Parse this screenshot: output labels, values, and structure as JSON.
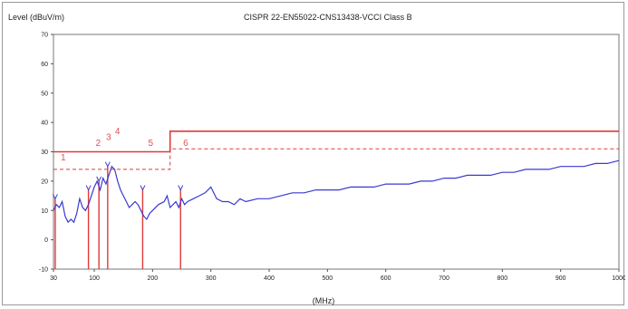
{
  "chart_data": {
    "type": "line",
    "title": "CISPR 22-EN55022-CNS13438-VCCI   Class B",
    "ylabel": "Level (dBuV/m)",
    "xlabel": "(MHz)",
    "xlim": [
      30,
      1000
    ],
    "ylim": [
      -10,
      70
    ],
    "x_ticks": [
      30,
      100,
      200,
      300,
      400,
      500,
      600,
      700,
      800,
      900,
      1000
    ],
    "y_ticks": [
      -10,
      0,
      10,
      20,
      30,
      40,
      50,
      60,
      70
    ],
    "grid": false,
    "limit_lines": [
      {
        "kind": "solid",
        "points": [
          [
            30,
            30
          ],
          [
            230,
            30
          ],
          [
            230,
            37
          ],
          [
            1000,
            37
          ]
        ]
      },
      {
        "kind": "dashed",
        "points": [
          [
            30,
            24
          ],
          [
            230,
            24
          ],
          [
            230,
            31
          ],
          [
            1000,
            31
          ]
        ]
      }
    ],
    "series": [
      {
        "x": [
          30,
          35,
          40,
          45,
          50,
          55,
          60,
          65,
          70,
          75,
          80,
          85,
          90,
          95,
          100,
          105,
          110,
          115,
          120,
          125,
          130,
          135,
          140,
          145,
          150,
          155,
          160,
          165,
          170,
          175,
          180,
          185,
          190,
          195,
          200,
          210,
          220,
          225,
          230,
          235,
          240,
          245,
          250,
          255,
          260,
          270,
          280,
          290,
          300,
          310,
          320,
          330,
          340,
          350,
          360,
          380,
          400,
          420,
          440,
          460,
          480,
          500,
          520,
          540,
          560,
          580,
          600,
          620,
          640,
          660,
          680,
          700,
          720,
          740,
          760,
          780,
          800,
          820,
          840,
          860,
          880,
          900,
          920,
          940,
          960,
          980,
          1000
        ],
        "y": [
          10,
          12,
          11,
          13,
          8,
          6,
          7,
          6,
          9,
          14,
          11,
          10,
          12,
          15,
          18,
          20,
          17,
          21,
          19,
          22,
          25,
          24,
          20,
          17,
          15,
          13,
          11,
          12,
          13,
          12,
          10,
          8,
          7,
          9,
          10,
          12,
          13,
          15,
          11,
          12,
          13,
          11,
          14,
          12,
          13,
          14,
          15,
          16,
          18,
          14,
          13,
          13,
          12,
          14,
          13,
          14,
          14,
          15,
          16,
          16,
          17,
          17,
          17,
          18,
          18,
          18,
          19,
          19,
          19,
          20,
          20,
          21,
          21,
          22,
          22,
          22,
          23,
          23,
          24,
          24,
          24,
          25,
          25,
          25,
          26,
          26,
          27
        ]
      }
    ],
    "markers": [
      {
        "label": "1",
        "freq": 33,
        "level": 14
      },
      {
        "label": "2",
        "freq": 90,
        "level": 17
      },
      {
        "label": "3",
        "freq": 108,
        "level": 20
      },
      {
        "label": "4",
        "freq": 123,
        "level": 25
      },
      {
        "label": "5",
        "freq": 183,
        "level": 17
      },
      {
        "label": "6",
        "freq": 248,
        "level": 17
      }
    ],
    "colors": {
      "trace": "#3a3ad0",
      "limit": "#e03a3a",
      "marker": "#e03a3a"
    }
  }
}
